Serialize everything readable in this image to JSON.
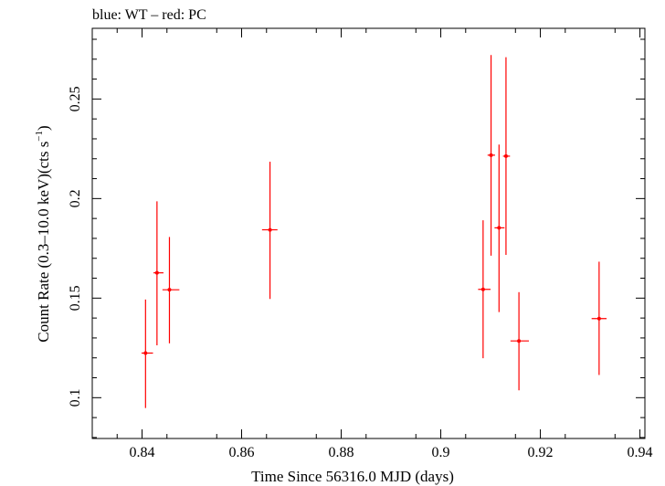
{
  "chart_data": {
    "type": "scatter",
    "title": "blue: WT – red: PC",
    "xlabel": "Time Since 56316.0 MJD (days)",
    "ylabel_main": "Count Rate (0.3–10.0 keV)(cts s",
    "ylabel_sup": "−1",
    "ylabel_close": ")",
    "xlim": [
      0.83,
      0.941
    ],
    "ylim": [
      0.0795,
      0.2855
    ],
    "x_ticks": [
      {
        "v": 0.84,
        "label": "0.84"
      },
      {
        "v": 0.86,
        "label": "0.86"
      },
      {
        "v": 0.88,
        "label": "0.88"
      },
      {
        "v": 0.9,
        "label": "0.9"
      },
      {
        "v": 0.92,
        "label": "0.92"
      },
      {
        "v": 0.94,
        "label": "0.94"
      }
    ],
    "y_ticks": [
      {
        "v": 0.1,
        "label": "0.1"
      },
      {
        "v": 0.15,
        "label": "0.15"
      },
      {
        "v": 0.2,
        "label": "0.2"
      },
      {
        "v": 0.25,
        "label": "0.25"
      }
    ],
    "series": [
      {
        "color": "#ff0000",
        "points": [
          {
            "x": 0.8407,
            "xlo": 0.8399,
            "xhi": 0.8422,
            "y": 0.1224,
            "ylo": 0.0948,
            "yhi": 0.1493
          },
          {
            "x": 0.843,
            "xlo": 0.8423,
            "xhi": 0.8443,
            "y": 0.1627,
            "ylo": 0.1263,
            "yhi": 0.1986
          },
          {
            "x": 0.8455,
            "xlo": 0.8441,
            "xhi": 0.8475,
            "y": 0.1542,
            "ylo": 0.1273,
            "yhi": 0.1807
          },
          {
            "x": 0.8657,
            "xlo": 0.8641,
            "xhi": 0.8672,
            "y": 0.1843,
            "ylo": 0.1496,
            "yhi": 0.2185
          },
          {
            "x": 0.9085,
            "xlo": 0.9075,
            "xhi": 0.91,
            "y": 0.1544,
            "ylo": 0.1198,
            "yhi": 0.1891
          },
          {
            "x": 0.9101,
            "xlo": 0.9094,
            "xhi": 0.9109,
            "y": 0.2218,
            "ylo": 0.1713,
            "yhi": 0.2721
          },
          {
            "x": 0.9117,
            "xlo": 0.9108,
            "xhi": 0.9128,
            "y": 0.1853,
            "ylo": 0.143,
            "yhi": 0.2271
          },
          {
            "x": 0.9131,
            "xlo": 0.9125,
            "xhi": 0.9139,
            "y": 0.2213,
            "ylo": 0.1717,
            "yhi": 0.271
          },
          {
            "x": 0.9157,
            "xlo": 0.914,
            "xhi": 0.9177,
            "y": 0.1285,
            "ylo": 0.1037,
            "yhi": 0.153
          },
          {
            "x": 0.9318,
            "xlo": 0.9303,
            "xhi": 0.9333,
            "y": 0.1397,
            "ylo": 0.1114,
            "yhi": 0.1683
          }
        ]
      }
    ],
    "grid": false,
    "legend": "none"
  }
}
